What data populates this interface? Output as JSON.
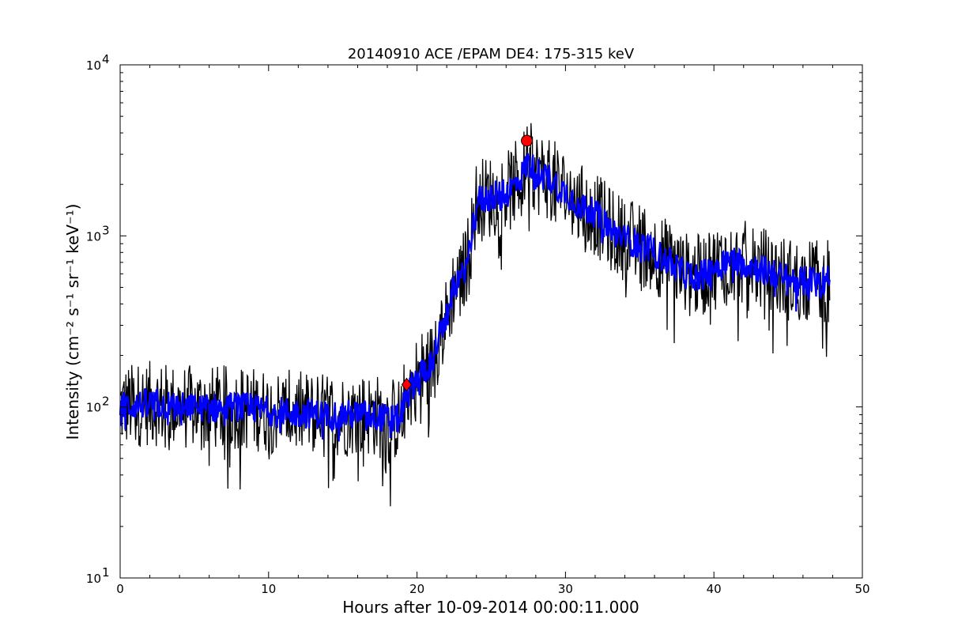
{
  "chart_data": {
    "type": "line",
    "title": "20140910 ACE /EPAM DE4: 175-315 keV",
    "xlabel": "Hours after 10-09-2014 00:00:11.000",
    "ylabel": "Intensity (cm⁻² s⁻¹ sr⁻¹ keV⁻¹)",
    "xlim": [
      0,
      50
    ],
    "ylim": [
      10,
      10000
    ],
    "yscale": "log",
    "grid": false,
    "x_ticks": [
      0,
      10,
      20,
      30,
      40,
      50
    ],
    "y_tick_labels": [
      {
        "value": 10,
        "base": "10",
        "exp": "1"
      },
      {
        "value": 100,
        "base": "10",
        "exp": "2"
      },
      {
        "value": 1000,
        "base": "10",
        "exp": "3"
      },
      {
        "value": 10000,
        "base": "10",
        "exp": "4"
      }
    ],
    "series": [
      {
        "kind": "raw",
        "color": "#000000",
        "x": [
          0,
          2,
          4,
          6,
          8,
          10,
          12,
          14,
          16,
          17,
          18,
          18.8,
          19.2,
          19.6,
          20,
          20.5,
          21,
          21.5,
          22,
          22.5,
          23,
          23.5,
          24,
          25,
          26,
          27,
          27.5,
          28,
          29,
          30,
          31,
          32,
          33,
          34,
          35,
          36,
          37,
          38,
          39,
          40,
          41,
          42,
          43,
          44,
          45,
          46,
          47,
          47.8
        ],
        "y": [
          100,
          105,
          100,
          98,
          100,
          95,
          92,
          90,
          90,
          90,
          85,
          85,
          110,
          130,
          150,
          165,
          180,
          260,
          330,
          520,
          560,
          800,
          1600,
          1700,
          1750,
          2200,
          2700,
          2350,
          2150,
          1800,
          1500,
          1350,
          1100,
          950,
          900,
          800,
          700,
          600,
          580,
          650,
          730,
          700,
          650,
          600,
          560,
          540,
          560,
          550
        ],
        "noise": 0.5
      },
      {
        "kind": "smoothed",
        "color": "#0000ff",
        "x": [
          0,
          2,
          4,
          6,
          8,
          10,
          12,
          14,
          16,
          17,
          18,
          18.8,
          19.2,
          19.6,
          20,
          20.5,
          21,
          21.5,
          22,
          22.5,
          23,
          23.5,
          24,
          25,
          26,
          27,
          27.5,
          28,
          29,
          30,
          31,
          32,
          33,
          34,
          35,
          36,
          37,
          38,
          39,
          40,
          41,
          42,
          43,
          44,
          45,
          46,
          47,
          47.8
        ],
        "y": [
          100,
          105,
          100,
          98,
          100,
          95,
          92,
          90,
          90,
          90,
          85,
          85,
          110,
          130,
          150,
          165,
          180,
          260,
          330,
          520,
          560,
          800,
          1600,
          1700,
          1750,
          2200,
          2700,
          2350,
          2150,
          1800,
          1500,
          1350,
          1100,
          950,
          900,
          800,
          700,
          600,
          580,
          650,
          730,
          700,
          650,
          600,
          560,
          540,
          560,
          550
        ],
        "noise": 0.18
      }
    ],
    "markers": [
      {
        "shape": "diamond",
        "color": "#ff0000",
        "x": 19.3,
        "y": 135
      },
      {
        "shape": "circle",
        "color": "#ff0000",
        "x": 27.4,
        "y": 3600
      }
    ]
  }
}
